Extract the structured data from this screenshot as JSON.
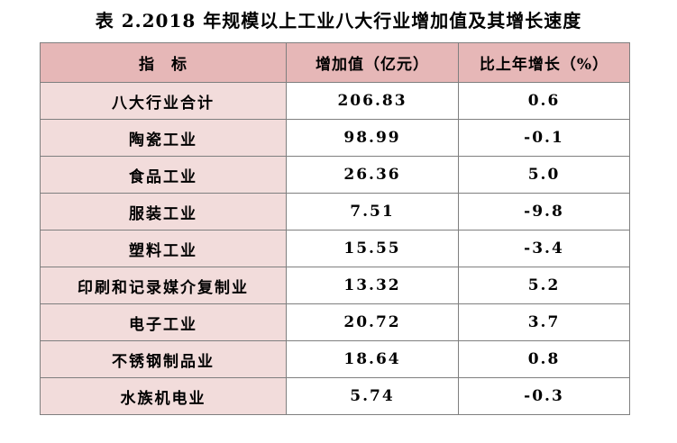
{
  "title": "表 2.2018 年规模以上工业八大行业增加值及其增长速度",
  "table": {
    "headers": [
      "指　标",
      "增加值（亿元）",
      "比上年增长（%）"
    ],
    "rows": [
      {
        "name": "八大行业合计",
        "value": "206.83",
        "growth": "0.6"
      },
      {
        "name": "陶瓷工业",
        "value": "98.99",
        "growth": "-0.1"
      },
      {
        "name": "食品工业",
        "value": "26.36",
        "growth": "5.0"
      },
      {
        "name": "服装工业",
        "value": "7.51",
        "growth": "-9.8"
      },
      {
        "name": "塑料工业",
        "value": "15.55",
        "growth": "-3.4"
      },
      {
        "name": "印刷和记录媒介复制业",
        "value": "13.32",
        "growth": "5.2"
      },
      {
        "name": "电子工业",
        "value": "20.72",
        "growth": "3.7"
      },
      {
        "name": "不锈钢制品业",
        "value": "18.64",
        "growth": "0.8"
      },
      {
        "name": "水族机电业",
        "value": "5.74",
        "growth": "-0.3"
      }
    ]
  },
  "colors": {
    "header_fill": "#e6b7b7",
    "name_column_fill": "#f2dcdb",
    "border": "#7f7f7f"
  }
}
